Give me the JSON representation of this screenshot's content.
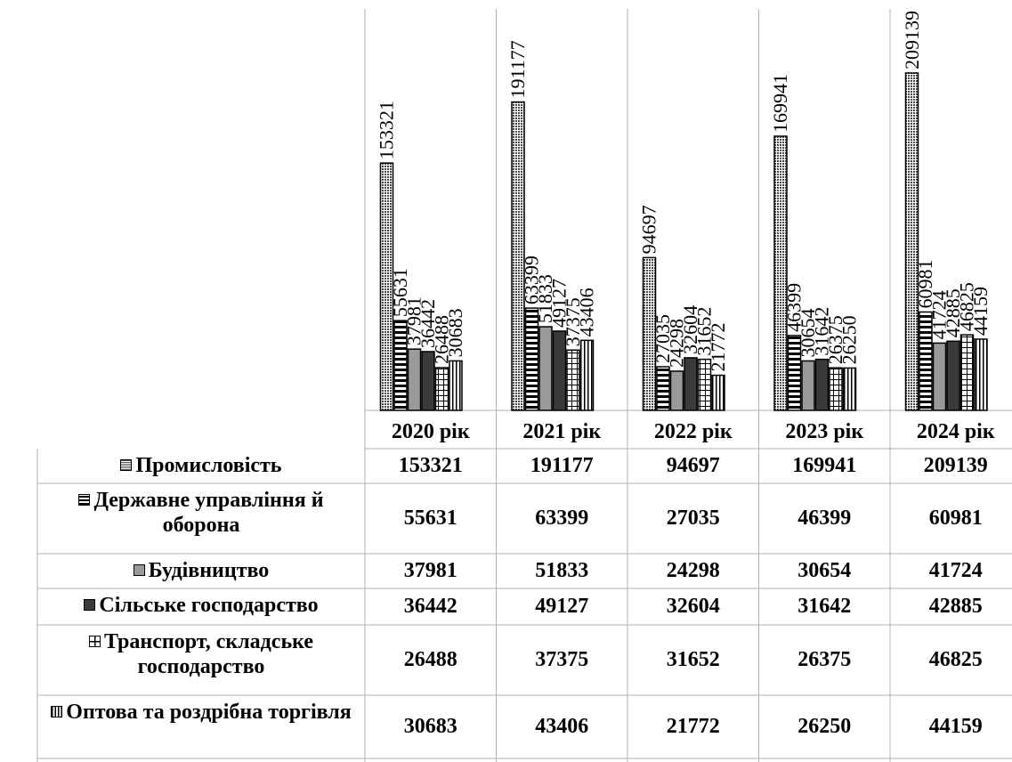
{
  "chart_data": {
    "type": "bar",
    "categories": [
      "2020 рік",
      "2021 рік",
      "2022 рік",
      "2023 рік",
      "2024 рік"
    ],
    "series": [
      {
        "name": "Промисловість",
        "values": [
          153321,
          191177,
          94697,
          169941,
          209139
        ],
        "pattern": "dots",
        "color": "#9a9a9a"
      },
      {
        "name": "Державне управління й оборона",
        "values": [
          55631,
          63399,
          27035,
          46399,
          60981
        ],
        "pattern": "hstripes",
        "color": "#ffffff"
      },
      {
        "name": "Будівництво",
        "values": [
          37981,
          51833,
          24298,
          30654,
          41724
        ],
        "pattern": "solid",
        "color": "#9a9a9a"
      },
      {
        "name": "Сільське господарство",
        "values": [
          36442,
          49127,
          32604,
          31642,
          42885
        ],
        "pattern": "solid",
        "color": "#3a3a3a"
      },
      {
        "name": "Транспорт, складське господарство",
        "values": [
          26488,
          37375,
          31652,
          26375,
          46825
        ],
        "pattern": "grid",
        "color": "#ffffff"
      },
      {
        "name": "Оптова та роздрібна торгівля",
        "values": [
          30683,
          43406,
          21772,
          26250,
          44159
        ],
        "pattern": "vstripes",
        "color": "#ffffff"
      }
    ],
    "ylim": [
      0,
      209139
    ],
    "data_labels": true,
    "data_table": true,
    "legend": "in-table-left",
    "title": "",
    "xlabel": "",
    "ylabel": ""
  }
}
